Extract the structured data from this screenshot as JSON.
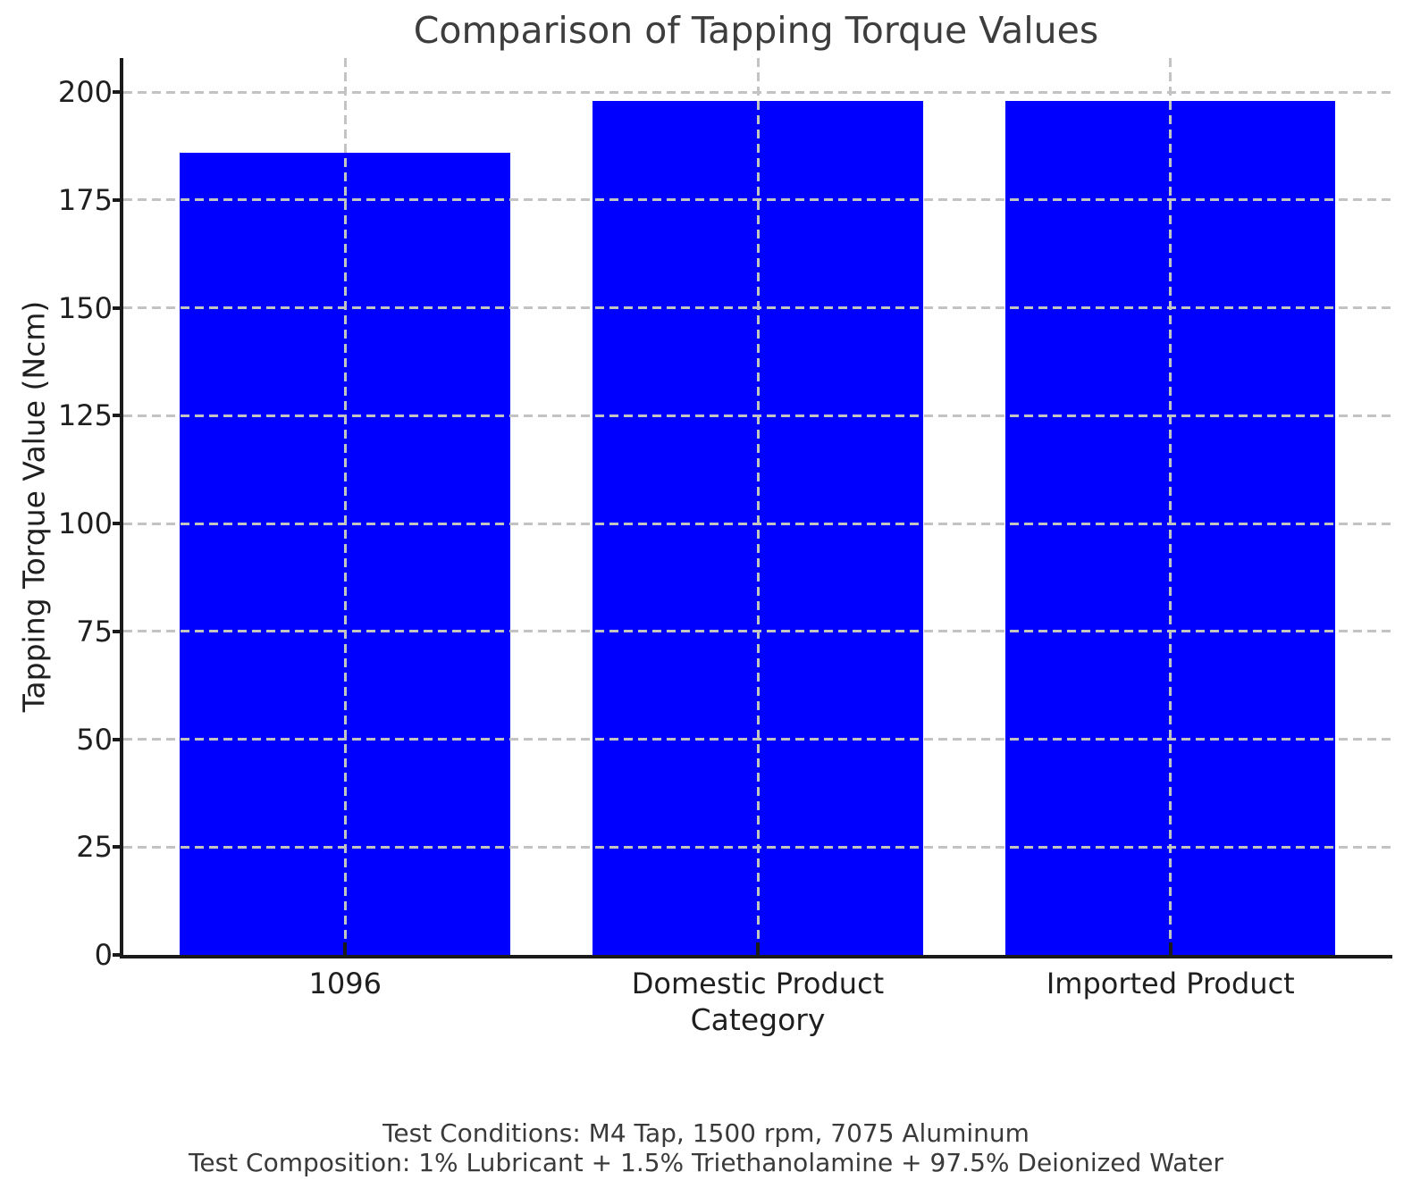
{
  "chart_data": {
    "type": "bar",
    "title": "Comparison of Tapping Torque Values",
    "categories": [
      "1096",
      "Domestic Product",
      "Imported Product"
    ],
    "values": [
      186,
      198,
      198
    ],
    "xlabel": "Category",
    "ylabel": "Tapping Torque Value (Ncm)",
    "ylim": [
      0,
      207.9
    ],
    "yticks": [
      0,
      25,
      50,
      75,
      100,
      125,
      150,
      175,
      200
    ],
    "grid": true,
    "grid_style": "dashed",
    "legend_position": "none",
    "bar_color": "#0000ff",
    "grid_color": "#c3c3c3",
    "axis_color": "#1a1a1a",
    "tick_label_color": "#1f1f1f",
    "title_color": "#3d3d3d",
    "annotation_color": "#3a3a3a"
  },
  "annotations": {
    "line1": "Test Conditions: M4 Tap, 1500 rpm, 7075 Aluminum",
    "line2": "Test Composition: 1% Lubricant + 1.5% Triethanolamine + 97.5% Deionized Water"
  }
}
